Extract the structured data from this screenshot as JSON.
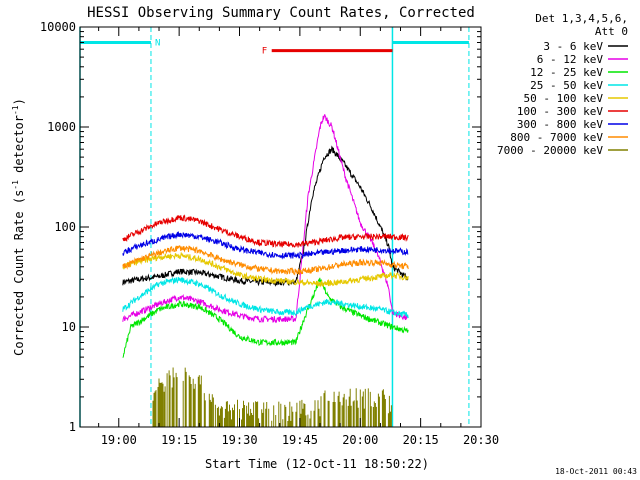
{
  "chart_data": {
    "type": "line",
    "title": "HESSI Observing Summary Count Rates, Corrected",
    "xlabel": "Start Time (12-Oct-11 18:50:22)",
    "ylabel_main": "Corrected Count Rate (s",
    "ylabel_sup1": "-1",
    "ylabel_mid": " detector",
    "ylabel_sup2": "-1",
    "ylabel_end": ")",
    "footer_timestamp": "18-Oct-2011 00:43",
    "y_scale": "log",
    "ylim": [
      1,
      10000
    ],
    "y_ticks": [
      {
        "value": 1,
        "label": "1"
      },
      {
        "value": 10,
        "label": "10"
      },
      {
        "value": 100,
        "label": "100"
      },
      {
        "value": 1000,
        "label": "1000"
      },
      {
        "value": 10000,
        "label": "10000"
      }
    ],
    "xlim": [
      "18:50:22",
      "20:30:00"
    ],
    "x_ticks": [
      {
        "time": "19:00",
        "label": "19:00"
      },
      {
        "time": "19:15",
        "label": "19:15"
      },
      {
        "time": "19:30",
        "label": "19:30"
      },
      {
        "time": "19:45",
        "label": "19:45"
      },
      {
        "time": "20:00",
        "label": "20:00"
      },
      {
        "time": "20:15",
        "label": "20:15"
      },
      {
        "time": "20:30",
        "label": "20:30"
      }
    ],
    "legend": {
      "placement": "right",
      "header": [
        "Det 1,3,4,5,6,",
        "Att 0"
      ],
      "entries": [
        {
          "label": "3 - 6 keV",
          "color": "#000000"
        },
        {
          "label": "6 - 12 keV",
          "color": "#e600e6"
        },
        {
          "label": "12 - 25 keV",
          "color": "#00e600"
        },
        {
          "label": "25 - 50 keV",
          "color": "#00e6e6"
        },
        {
          "label": "50 - 100 keV",
          "color": "#e6c800"
        },
        {
          "label": "100 - 300 keV",
          "color": "#e60000"
        },
        {
          "label": "300 - 800 keV",
          "color": "#0000e6"
        },
        {
          "label": "800 - 7000 keV",
          "color": "#ff8c00"
        },
        {
          "label": "7000 - 20000 keV",
          "color": "#808000"
        }
      ]
    },
    "annotations": {
      "night_label": "N",
      "flare_label": "F",
      "night_color": "#00e6e6",
      "flare_color": "#e60000",
      "night_intervals": [
        [
          "18:50:22",
          "19:08:00"
        ],
        [
          "20:08:00",
          "20:27:00"
        ]
      ],
      "flare_interval": [
        "19:38:00",
        "20:08:00"
      ],
      "boundary_times": [
        "18:50:22",
        "19:08:00",
        "20:08:00",
        "20:27:00"
      ],
      "night_level": 7000,
      "flare_level": 5800
    },
    "series": [
      {
        "name": "3 - 6 keV",
        "color": "#000000",
        "points": [
          [
            "19:01",
            28
          ],
          [
            "19:05",
            30
          ],
          [
            "19:10",
            32
          ],
          [
            "19:15",
            36
          ],
          [
            "19:20",
            35
          ],
          [
            "19:25",
            32
          ],
          [
            "19:30",
            29
          ],
          [
            "19:35",
            28
          ],
          [
            "19:40",
            28
          ],
          [
            "19:44",
            28
          ],
          [
            "19:46",
            60
          ],
          [
            "19:48",
            200
          ],
          [
            "19:51",
            500
          ],
          [
            "19:53",
            600
          ],
          [
            "19:56",
            430
          ],
          [
            "20:00",
            250
          ],
          [
            "20:03",
            150
          ],
          [
            "20:05",
            100
          ],
          [
            "20:07",
            65
          ],
          [
            "20:08",
            40
          ],
          [
            "20:12",
            30
          ]
        ]
      },
      {
        "name": "6 - 12 keV",
        "color": "#e600e6",
        "points": [
          [
            "19:01",
            12
          ],
          [
            "19:05",
            14
          ],
          [
            "19:10",
            17
          ],
          [
            "19:15",
            20
          ],
          [
            "19:20",
            18
          ],
          [
            "19:25",
            15
          ],
          [
            "19:30",
            13
          ],
          [
            "19:35",
            12
          ],
          [
            "19:40",
            12
          ],
          [
            "19:44",
            12
          ],
          [
            "19:45",
            30
          ],
          [
            "19:47",
            200
          ],
          [
            "19:50",
            1000
          ],
          [
            "19:51",
            1300
          ],
          [
            "19:53",
            1000
          ],
          [
            "19:56",
            350
          ],
          [
            "20:00",
            110
          ],
          [
            "20:03",
            70
          ],
          [
            "20:05",
            45
          ],
          [
            "20:07",
            25
          ],
          [
            "20:08",
            14
          ],
          [
            "20:12",
            12
          ]
        ]
      },
      {
        "name": "12 - 25 keV",
        "color": "#00e600",
        "points": [
          [
            "19:01",
            5
          ],
          [
            "19:03",
            10
          ],
          [
            "19:10",
            15
          ],
          [
            "19:15",
            17
          ],
          [
            "19:20",
            16
          ],
          [
            "19:25",
            12
          ],
          [
            "19:30",
            8
          ],
          [
            "19:35",
            7
          ],
          [
            "19:40",
            7
          ],
          [
            "19:44",
            7
          ],
          [
            "19:46",
            12
          ],
          [
            "19:50",
            30
          ],
          [
            "19:52",
            20
          ],
          [
            "19:55",
            16
          ],
          [
            "20:00",
            13
          ],
          [
            "20:05",
            11
          ],
          [
            "20:08",
            10
          ],
          [
            "20:12",
            9
          ]
        ]
      },
      {
        "name": "25 - 50 keV",
        "color": "#00e6e6",
        "points": [
          [
            "19:01",
            15
          ],
          [
            "19:05",
            20
          ],
          [
            "19:10",
            27
          ],
          [
            "19:15",
            30
          ],
          [
            "19:20",
            27
          ],
          [
            "19:25",
            21
          ],
          [
            "19:30",
            17
          ],
          [
            "19:35",
            15
          ],
          [
            "19:40",
            14
          ],
          [
            "19:44",
            14
          ],
          [
            "19:47",
            16
          ],
          [
            "19:52",
            18
          ],
          [
            "19:56",
            17
          ],
          [
            "20:00",
            16
          ],
          [
            "20:05",
            15
          ],
          [
            "20:08",
            14
          ],
          [
            "20:12",
            13
          ]
        ]
      },
      {
        "name": "50 - 100 keV",
        "color": "#e6c800",
        "points": [
          [
            "19:01",
            40
          ],
          [
            "19:05",
            45
          ],
          [
            "19:10",
            50
          ],
          [
            "19:15",
            52
          ],
          [
            "19:20",
            48
          ],
          [
            "19:25",
            40
          ],
          [
            "19:30",
            33
          ],
          [
            "19:35",
            30
          ],
          [
            "19:40",
            29
          ],
          [
            "19:45",
            28
          ],
          [
            "19:50",
            27
          ],
          [
            "19:55",
            28
          ],
          [
            "20:00",
            30
          ],
          [
            "20:05",
            32
          ],
          [
            "20:08",
            33
          ],
          [
            "20:12",
            31
          ]
        ]
      },
      {
        "name": "100 - 300 keV",
        "color": "#e60000",
        "points": [
          [
            "19:01",
            75
          ],
          [
            "19:05",
            90
          ],
          [
            "19:10",
            110
          ],
          [
            "19:15",
            125
          ],
          [
            "19:20",
            115
          ],
          [
            "19:25",
            95
          ],
          [
            "19:30",
            80
          ],
          [
            "19:35",
            70
          ],
          [
            "19:40",
            67
          ],
          [
            "19:45",
            67
          ],
          [
            "19:50",
            72
          ],
          [
            "19:55",
            78
          ],
          [
            "20:00",
            80
          ],
          [
            "20:05",
            80
          ],
          [
            "20:08",
            80
          ],
          [
            "20:12",
            78
          ]
        ]
      },
      {
        "name": "300 - 800 keV",
        "color": "#0000e6",
        "points": [
          [
            "19:01",
            55
          ],
          [
            "19:05",
            65
          ],
          [
            "19:10",
            75
          ],
          [
            "19:15",
            85
          ],
          [
            "19:20",
            80
          ],
          [
            "19:25",
            70
          ],
          [
            "19:30",
            60
          ],
          [
            "19:35",
            55
          ],
          [
            "19:40",
            52
          ],
          [
            "19:45",
            52
          ],
          [
            "19:50",
            55
          ],
          [
            "19:55",
            58
          ],
          [
            "20:00",
            60
          ],
          [
            "20:05",
            59
          ],
          [
            "20:08",
            58
          ],
          [
            "20:12",
            56
          ]
        ]
      },
      {
        "name": "800 - 7000 keV",
        "color": "#ff8c00",
        "points": [
          [
            "19:01",
            40
          ],
          [
            "19:05",
            47
          ],
          [
            "19:10",
            55
          ],
          [
            "19:15",
            62
          ],
          [
            "19:20",
            58
          ],
          [
            "19:25",
            48
          ],
          [
            "19:30",
            42
          ],
          [
            "19:35",
            38
          ],
          [
            "19:40",
            36
          ],
          [
            "19:45",
            36
          ],
          [
            "19:50",
            38
          ],
          [
            "19:55",
            42
          ],
          [
            "20:00",
            44
          ],
          [
            "20:05",
            44
          ],
          [
            "20:08",
            42
          ],
          [
            "20:12",
            40
          ]
        ]
      },
      {
        "name": "7000 - 20000 keV",
        "color": "#808000",
        "points": [
          [
            "19:08",
            2
          ],
          [
            "19:10",
            2.5
          ],
          [
            "19:12",
            3
          ],
          [
            "19:14",
            3.5
          ],
          [
            "19:17",
            3.5
          ],
          [
            "19:19",
            3
          ],
          [
            "19:21",
            2.5
          ],
          [
            "19:23",
            2
          ],
          [
            "19:25",
            1.5
          ],
          [
            "19:49",
            1.5
          ],
          [
            "19:52",
            2
          ],
          [
            "19:57",
            2
          ],
          [
            "20:02",
            2
          ],
          [
            "20:06",
            2
          ],
          [
            "20:08",
            1.5
          ]
        ]
      }
    ]
  }
}
